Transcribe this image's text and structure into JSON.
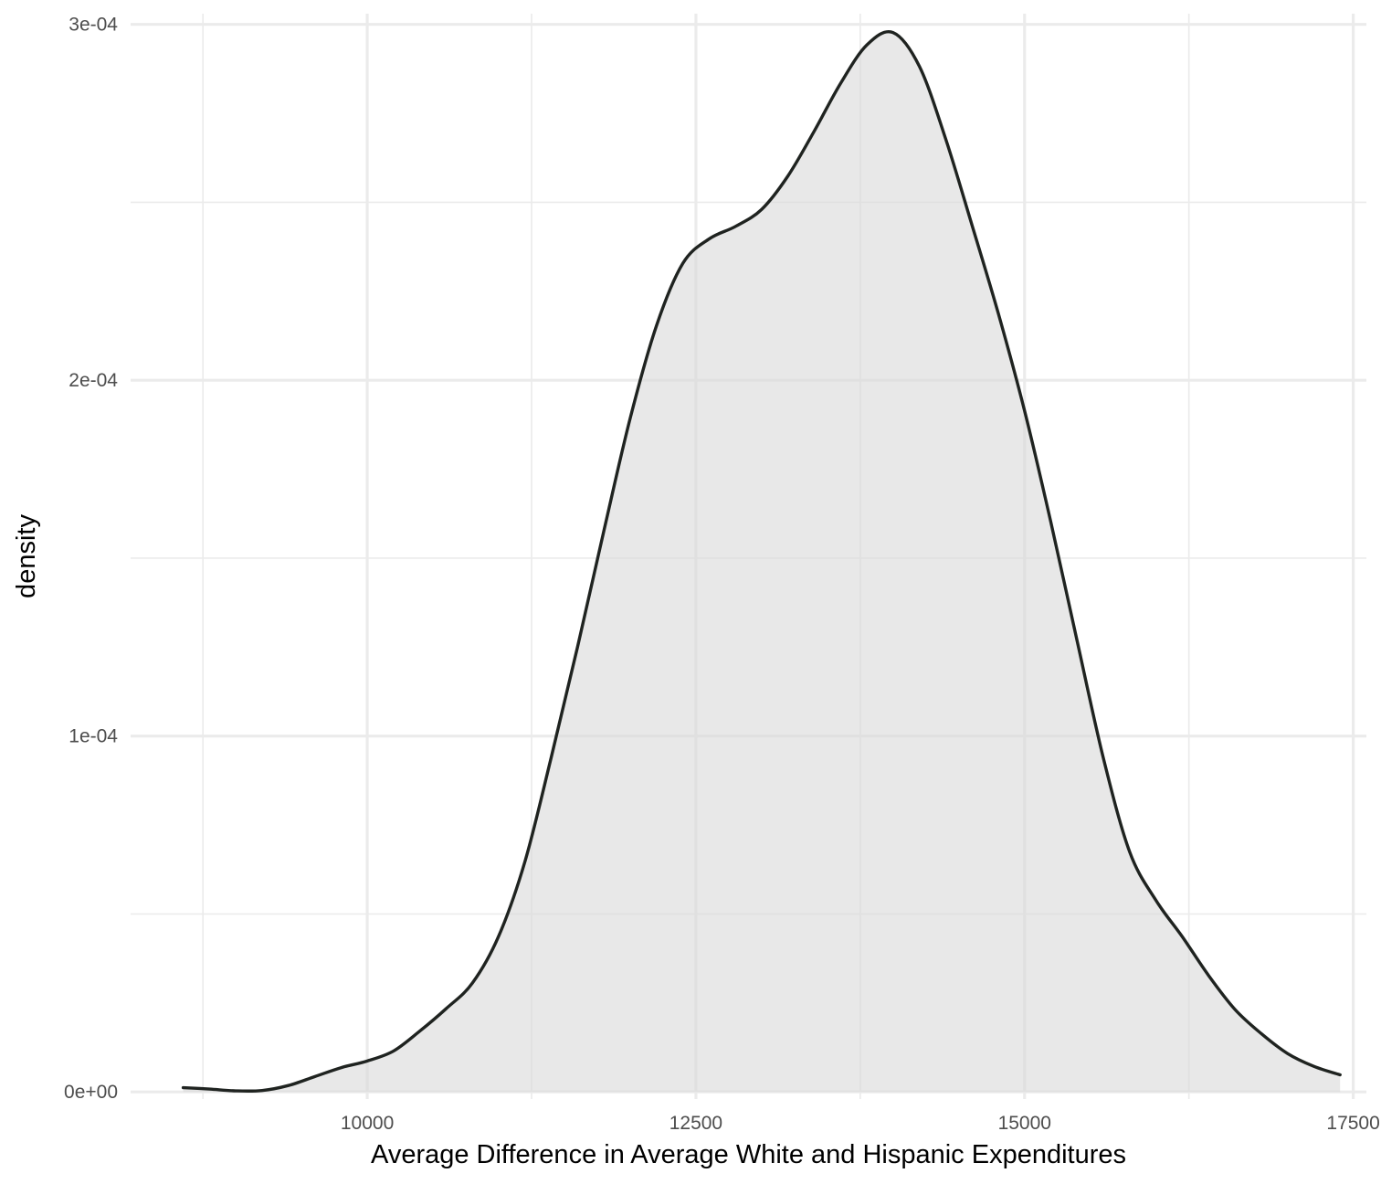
{
  "chart_data": {
    "type": "area",
    "title": "",
    "xlabel": "Average Difference in Average White and Hispanic Expenditures",
    "ylabel": "density",
    "xlim": [
      8200,
      17600
    ],
    "ylim": [
      -2e-06,
      0.000303
    ],
    "x_ticks": [
      10000,
      12500,
      15000,
      17500
    ],
    "x_tick_labels": [
      "10000",
      "12500",
      "15000",
      "17500"
    ],
    "x_minor_ticks": [
      8750,
      11250,
      13750,
      16250
    ],
    "y_ticks": [
      0,
      0.0001,
      0.0002,
      0.0003
    ],
    "y_tick_labels": [
      "0e+00",
      "1e-04",
      "2e-04",
      "3e-04"
    ],
    "y_minor_ticks": [
      5e-05,
      0.00015,
      0.00025
    ],
    "grid": true,
    "fill_color": "#d9d9d9",
    "line_color": "#1f2320",
    "series": [
      {
        "x": [
          8600,
          8800,
          9000,
          9200,
          9400,
          9600,
          9800,
          10000,
          10200,
          10400,
          10600,
          10800,
          11000,
          11200,
          11400,
          11600,
          11800,
          12000,
          12200,
          12400,
          12600,
          12800,
          13000,
          13200,
          13400,
          13600,
          13800,
          14000,
          14200,
          14400,
          14600,
          14800,
          15000,
          15200,
          15400,
          15600,
          15800,
          16000,
          16200,
          16400,
          16600,
          16800,
          17000,
          17200,
          17400
        ],
        "y": [
          1.2e-06,
          8e-07,
          3e-07,
          4e-07,
          1.8e-06,
          4.3e-06,
          6.8e-06,
          8.7e-06,
          1.15e-05,
          1.71e-05,
          2.34e-05,
          3.06e-05,
          4.38e-05,
          6.48e-05,
          9.41e-05,
          0.0001251,
          0.0001577,
          0.0001893,
          0.0002153,
          0.0002328,
          0.0002397,
          0.0002432,
          0.000248,
          0.0002574,
          0.00027,
          0.0002834,
          0.0002942,
          0.0002977,
          0.0002882,
          0.0002678,
          0.0002436,
          0.0002188,
          0.0001914,
          0.0001601,
          0.0001267,
          9.37e-05,
          6.74e-05,
          5.38e-05,
          4.36e-05,
          3.27e-05,
          2.32e-05,
          1.64e-05,
          1.08e-05,
          7.2e-06,
          4.8e-06
        ]
      }
    ]
  }
}
